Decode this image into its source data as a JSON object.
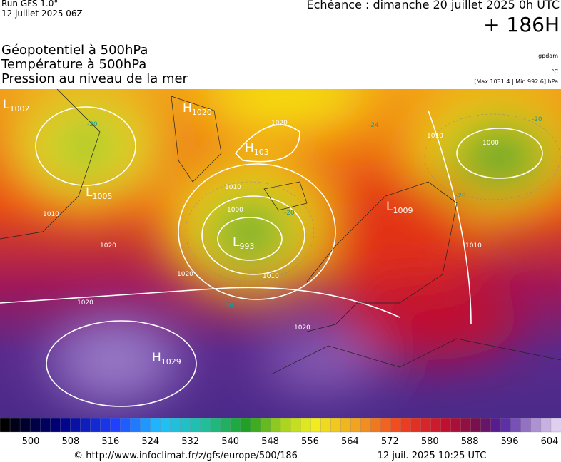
{
  "header": {
    "run": "Run GFS 1.0°",
    "run_date": "12 juillet 2025 06Z",
    "echeance": "Echéance : dimanche 20 juillet 2025 0h UTC",
    "lead": "+ 186H"
  },
  "titles": [
    "Géopotentiel à 500hPa",
    "Température à 500hPa",
    "Pression au niveau de la mer"
  ],
  "units": {
    "geopotential": "gpdam",
    "temperature": "°C",
    "pressure": "[Max 1031.4 | Min 992.6] hPa"
  },
  "map": {
    "centers": [
      {
        "letter": "L",
        "value": "1002"
      },
      {
        "letter": "H",
        "value": "1020"
      },
      {
        "letter": "H",
        "value": "103"
      },
      {
        "letter": "L",
        "value": "1005"
      },
      {
        "letter": "L",
        "value": "993"
      },
      {
        "letter": "L",
        "value": "1009"
      },
      {
        "letter": "H",
        "value": "1029"
      }
    ],
    "isobar_labels": [
      "1020",
      "1010",
      "1000",
      "1020",
      "1020",
      "1010",
      "1020",
      "1020",
      "1010",
      "1000",
      "1010",
      "1010"
    ],
    "temp_labels": [
      "-20",
      "-20",
      "-24",
      "-20",
      "-20",
      "-16"
    ]
  },
  "colorbar": {
    "ticks": [
      500,
      508,
      516,
      524,
      532,
      540,
      548,
      556,
      564,
      572,
      580,
      588,
      596,
      604
    ]
  },
  "footer": {
    "source": "© http://www.infoclimat.fr/z/gfs/europe/500/186",
    "generated": "12 juil. 2025 10:25 UTC"
  }
}
